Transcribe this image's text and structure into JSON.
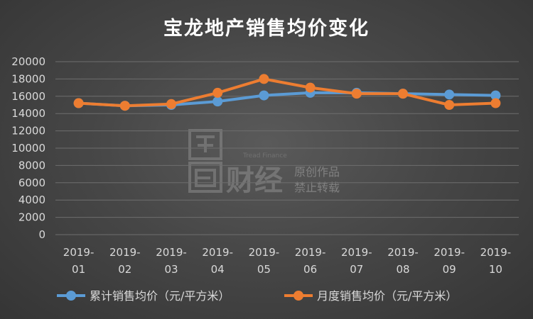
{
  "chart_data": {
    "type": "line",
    "title": "宝龙地产销售均价变化",
    "categories": [
      [
        "2019-",
        "01"
      ],
      [
        "2019-",
        "02"
      ],
      [
        "2019-",
        "03"
      ],
      [
        "2019-",
        "04"
      ],
      [
        "2019-",
        "05"
      ],
      [
        "2019-",
        "06"
      ],
      [
        "2019-",
        "07"
      ],
      [
        "2019-",
        "08"
      ],
      [
        "2019-",
        "09"
      ],
      [
        "2019-",
        "10"
      ]
    ],
    "ylim": [
      0,
      20000
    ],
    "yticks": [
      0,
      2000,
      4000,
      6000,
      8000,
      10000,
      12000,
      14000,
      16000,
      18000,
      20000
    ],
    "grid": true,
    "legend_position": "bottom",
    "series": [
      {
        "name": "累计销售均价（元/平方米）",
        "color": "#5b9bd5",
        "values": [
          15200,
          14900,
          15000,
          15400,
          16100,
          16400,
          16400,
          16300,
          16200,
          16100
        ]
      },
      {
        "name": "月度销售均价（元/平方米）",
        "color": "#ed7d31",
        "values": [
          15200,
          14900,
          15100,
          16400,
          18000,
          17000,
          16300,
          16300,
          15000,
          15200
        ]
      }
    ]
  },
  "watermark": {
    "brand": "财经",
    "english": "Tread Finance",
    "line1": "原创作品",
    "line2": "禁止转载"
  }
}
